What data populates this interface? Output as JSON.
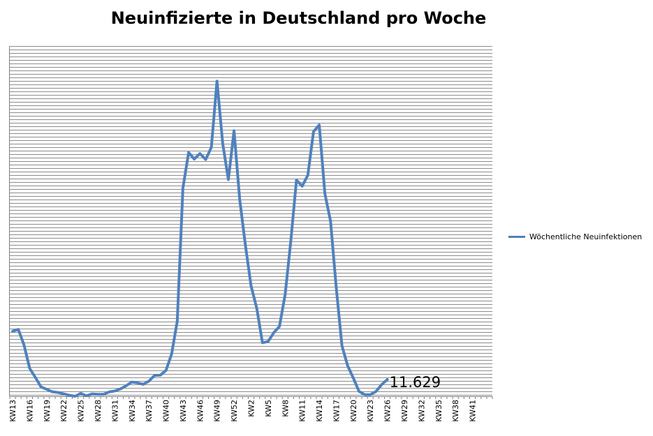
{
  "chart_data": {
    "type": "line",
    "title": "Neuinfizierte in Deutschland pro Woche",
    "xlabel": "",
    "ylabel": "",
    "ylim": [
      0,
      230000
    ],
    "grid": true,
    "legend_position": "right",
    "line_color": "#4F81BD",
    "tick_labels": [
      "KW13",
      "KW16",
      "KW19",
      "KW22",
      "KW25",
      "KW28",
      "KW31",
      "KW34",
      "KW37",
      "KW40",
      "KW43",
      "KW46",
      "KW49",
      "KW52",
      "KW2",
      "KW5",
      "KW8",
      "KW11",
      "KW14",
      "KW17",
      "KW20",
      "KW23",
      "KW26",
      "KW29",
      "KW32",
      "KW35",
      "KW38",
      "KW41"
    ],
    "annotation": {
      "label": "11.629",
      "value": 11629
    },
    "series": [
      {
        "name": "Wöchentliche Neuinfektionen",
        "values": [
          45200,
          46500,
          35800,
          19400,
          13100,
          6500,
          4800,
          3100,
          2600,
          1600,
          700,
          0,
          2000,
          300,
          1600,
          1300,
          1300,
          3000,
          3700,
          5100,
          7300,
          9900,
          9300,
          8300,
          10500,
          14500,
          14600,
          17900,
          29300,
          52100,
          144800,
          169500,
          165000,
          168800,
          164700,
          173100,
          219200,
          175800,
          150700,
          184700,
          137000,
          105000,
          76700,
          61300,
          37200,
          38100,
          44200,
          48500,
          70700,
          108000,
          150400,
          146100,
          153800,
          184000,
          188700,
          140900,
          121700,
          75800,
          35200,
          21300,
          12800,
          3400,
          1100,
          1100,
          3300,
          8100,
          11629
        ]
      }
    ]
  }
}
